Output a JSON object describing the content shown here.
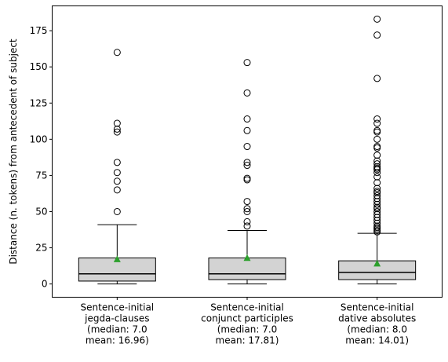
{
  "chart_data": {
    "type": "box",
    "ylabel": "Distance (n. tokens) from antecedent of subject",
    "ylim": [
      -9.15,
      192.15
    ],
    "yticks": [
      0,
      25,
      50,
      75,
      100,
      125,
      150,
      175
    ],
    "grid": false,
    "legend": "none",
    "box_fill": "#d3d3d3",
    "mean_marker_color": "#2ca02c",
    "groups": [
      {
        "label_lines": [
          "Sentence-initial",
          "jegda-clauses",
          "(median: 7.0",
          "mean: 16.96)"
        ],
        "median": 7.0,
        "mean": 16.96,
        "q1": 2,
        "q3": 18,
        "whisker_low": 0,
        "whisker_high": 41,
        "outliers": [
          50,
          65,
          71,
          77,
          84,
          105,
          107,
          111,
          160
        ]
      },
      {
        "label_lines": [
          "Sentence-initial",
          "conjunct participles",
          "(median: 7.0",
          "mean: 17.81)"
        ],
        "median": 7.0,
        "mean": 17.81,
        "q1": 3,
        "q3": 18,
        "whisker_low": 0,
        "whisker_high": 37,
        "outliers": [
          40,
          43,
          50,
          52,
          57,
          72,
          73,
          82,
          84,
          95,
          106,
          114,
          132,
          153
        ]
      },
      {
        "label_lines": [
          "Sentence-initial",
          "dative absolutes",
          "(median: 8.0",
          "mean: 14.01)"
        ],
        "median": 8.0,
        "mean": 14.01,
        "q1": 3,
        "q3": 16,
        "whisker_low": 0,
        "whisker_high": 35,
        "outliers": [
          36,
          37,
          38,
          39,
          40,
          42,
          44,
          46,
          48,
          50,
          52,
          53,
          55,
          57,
          59,
          61,
          63,
          64,
          66,
          70,
          74,
          77,
          79,
          80,
          81,
          83,
          85,
          89,
          94,
          95,
          100,
          105,
          106,
          111,
          114,
          142,
          172,
          183
        ]
      }
    ]
  }
}
